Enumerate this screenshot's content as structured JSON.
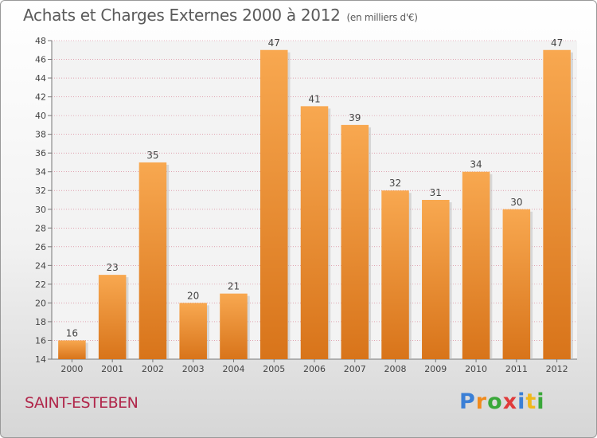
{
  "title": "Achats et Charges Externes 2000 à 2012",
  "unit": "(en milliers d'€)",
  "commune": "SAINT-ESTEBEN",
  "logo": {
    "text": "Proxiti",
    "letters": [
      {
        "ch": "P",
        "color": "#3a7fd6"
      },
      {
        "ch": "r",
        "color": "#f08a1c"
      },
      {
        "ch": "o",
        "color": "#3aa83a"
      },
      {
        "ch": "x",
        "color": "#e03a3a"
      },
      {
        "ch": "i",
        "color": "#3a7fd6"
      },
      {
        "ch": "t",
        "color": "#f0b81c"
      },
      {
        "ch": "i",
        "color": "#3aa83a"
      }
    ]
  },
  "chart_data": {
    "type": "bar",
    "categories": [
      "2000",
      "2001",
      "2002",
      "2003",
      "2004",
      "2005",
      "2006",
      "2007",
      "2008",
      "2009",
      "2010",
      "2011",
      "2012"
    ],
    "values": [
      16,
      23,
      35,
      20,
      21,
      47,
      41,
      39,
      32,
      31,
      34,
      30,
      47
    ],
    "ylim": [
      14,
      48
    ],
    "yticks": [
      14,
      16,
      18,
      20,
      22,
      24,
      26,
      28,
      30,
      32,
      34,
      36,
      38,
      40,
      42,
      44,
      46,
      48
    ],
    "grid": true,
    "bar_color_light": "#f8a850",
    "bar_color_dark": "#d8741a",
    "grid_color": "#c73a5a",
    "data_labels": true
  }
}
